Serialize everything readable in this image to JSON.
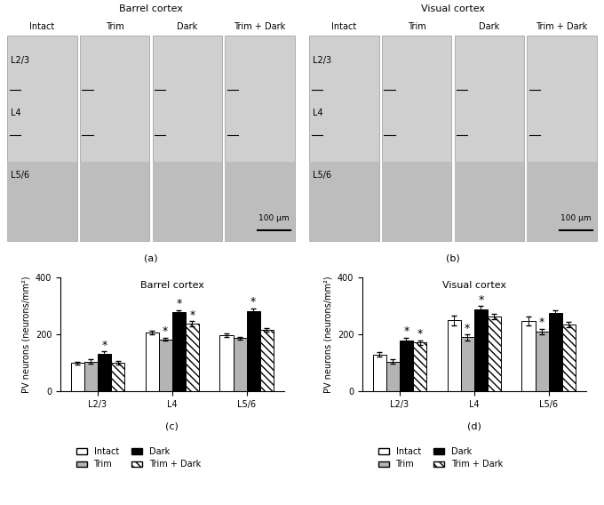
{
  "micrographs": [
    {
      "title": "Barrel cortex",
      "panel": "(a)",
      "columns": [
        "Intact",
        "Trim",
        "Dark",
        "Trim + Dark"
      ],
      "layers": [
        "L2/3",
        "L4",
        "L5/6"
      ],
      "scale_bar": "100 μm"
    },
    {
      "title": "Visual cortex",
      "panel": "(b)",
      "columns": [
        "Intact",
        "Trim",
        "Dark",
        "Trim + Dark"
      ],
      "layers": [
        "L2/3",
        "L4",
        "L5/6"
      ],
      "scale_bar": "100 μm"
    }
  ],
  "chart_data": [
    {
      "type": "bar",
      "title": "Barrel cortex",
      "panel": "(c)",
      "y_label": "PV neurons (neurons/mm²)",
      "categories": [
        "L2/3",
        "L4",
        "L5/6"
      ],
      "ylim": [
        0,
        400
      ],
      "yticks": [
        0,
        200,
        400
      ],
      "legend": "upper center",
      "significance_mark": "*",
      "series": [
        {
          "name": "Intact",
          "color": "#ffffff",
          "values": [
            100,
            207,
            198
          ],
          "errors": [
            5,
            6,
            6
          ],
          "significant": [
            false,
            false,
            false
          ]
        },
        {
          "name": "Trim",
          "color": "#b4b4b4",
          "values": [
            105,
            183,
            187
          ],
          "errors": [
            7,
            5,
            5
          ],
          "significant": [
            false,
            true,
            false
          ]
        },
        {
          "name": "Dark",
          "color": "#000000",
          "values": [
            132,
            278,
            283
          ],
          "errors": [
            8,
            9,
            9
          ],
          "significant": [
            true,
            true,
            true
          ]
        },
        {
          "name": "Trim + Dark",
          "color": "#ffffff",
          "values": [
            100,
            238,
            217
          ],
          "errors": [
            6,
            9,
            7
          ],
          "significant": [
            false,
            true,
            false
          ]
        }
      ]
    },
    {
      "type": "bar",
      "title": "Visual cortex",
      "panel": "(d)",
      "y_label": "PV neurons (neurons/mm²)",
      "categories": [
        "L2/3",
        "L4",
        "L5/6"
      ],
      "ylim": [
        0,
        400
      ],
      "yticks": [
        0,
        200,
        400
      ],
      "legend": "upper center",
      "significance_mark": "*",
      "series": [
        {
          "name": "Intact",
          "color": "#ffffff",
          "values": [
            130,
            250,
            247
          ],
          "errors": [
            8,
            18,
            15
          ],
          "significant": [
            false,
            false,
            false
          ]
        },
        {
          "name": "Trim",
          "color": "#b4b4b4",
          "values": [
            105,
            190,
            210
          ],
          "errors": [
            8,
            10,
            10
          ],
          "significant": [
            false,
            true,
            true
          ]
        },
        {
          "name": "Dark",
          "color": "#000000",
          "values": [
            178,
            290,
            275
          ],
          "errors": [
            10,
            10,
            10
          ],
          "significant": [
            true,
            true,
            false
          ]
        },
        {
          "name": "Trim + Dark",
          "color": "#ffffff",
          "values": [
            172,
            263,
            235
          ],
          "errors": [
            8,
            10,
            10
          ],
          "significant": [
            true,
            false,
            false
          ]
        }
      ]
    }
  ]
}
